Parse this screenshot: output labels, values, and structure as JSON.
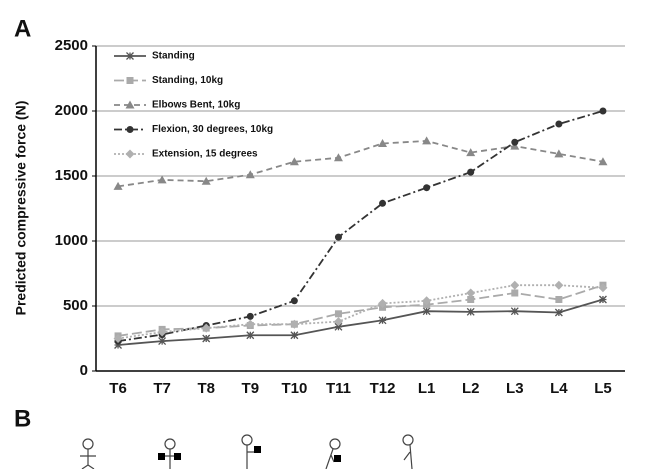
{
  "chart_data": {
    "type": "line",
    "panel_labels": [
      "A",
      "B"
    ],
    "ylabel": "Predicted compressive force (N)",
    "categories": [
      "T6",
      "T7",
      "T8",
      "T9",
      "T10",
      "T11",
      "T12",
      "L1",
      "L2",
      "L3",
      "L4",
      "L5"
    ],
    "ylim": [
      0,
      2500
    ],
    "yticks": [
      0,
      500,
      1000,
      1500,
      2000,
      2500
    ],
    "grid": true,
    "legend": "upper left",
    "series": [
      {
        "name": "Standing",
        "color": "#555555",
        "marker": "star",
        "dash": "solid",
        "values": [
          200,
          230,
          250,
          275,
          275,
          340,
          390,
          460,
          455,
          460,
          450,
          550
        ]
      },
      {
        "name": "Standing, 10kg",
        "color": "#aaaaaa",
        "marker": "square",
        "dash": "longdash",
        "values": [
          270,
          320,
          330,
          350,
          360,
          440,
          490,
          510,
          550,
          600,
          550,
          660
        ]
      },
      {
        "name": "Elbows Bent, 10kg",
        "color": "#888888",
        "marker": "triangle",
        "dash": "dash",
        "values": [
          1420,
          1470,
          1460,
          1510,
          1610,
          1640,
          1750,
          1770,
          1680,
          1730,
          1670,
          1610
        ]
      },
      {
        "name": "Flexion, 30 degrees, 10kg",
        "color": "#333333",
        "marker": "circle",
        "dash": "dashdot",
        "values": [
          230,
          280,
          350,
          420,
          540,
          1030,
          1290,
          1410,
          1530,
          1760,
          1900,
          2000
        ]
      },
      {
        "name": "Extension, 15 degrees",
        "color": "#b0b0b0",
        "marker": "diamond",
        "dash": "dot",
        "values": [
          250,
          300,
          330,
          360,
          360,
          380,
          520,
          540,
          600,
          660,
          660,
          640
        ]
      }
    ]
  }
}
